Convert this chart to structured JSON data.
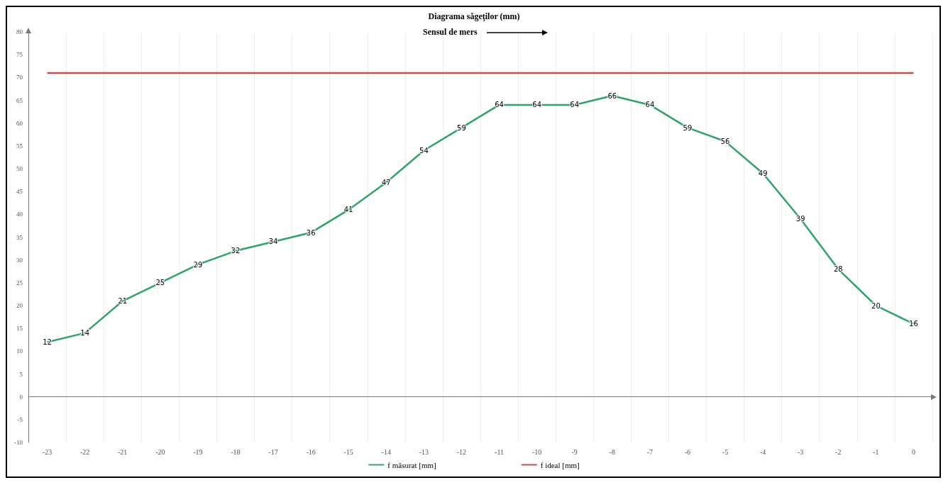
{
  "chart_data": {
    "type": "line",
    "title": "Diagrama săgeţilor (mm)",
    "annotations": [
      "Sensul de mers"
    ],
    "categories": [
      "-23",
      "-22",
      "-21",
      "-20",
      "-19",
      "-18",
      "-17",
      "-16",
      "-15",
      "-14",
      "-13",
      "-12",
      "-11",
      "-10",
      "-9",
      "-8",
      "-7",
      "-6",
      "-5",
      "-4",
      "-3",
      "-2",
      "-1",
      "0"
    ],
    "series": [
      {
        "name": "f măsurat [mm]",
        "color": "#2ea36a",
        "values": [
          12,
          14,
          21,
          25,
          29,
          32,
          34,
          36,
          41,
          47,
          54,
          59,
          64,
          64,
          64,
          66,
          64,
          59,
          56,
          49,
          39,
          28,
          20,
          16
        ],
        "value_labels": [
          "12",
          "14",
          "21",
          "25",
          "29",
          "32",
          "34",
          "36",
          "41",
          "47",
          "54",
          "59",
          "64",
          "64",
          "64",
          "66",
          "64",
          "59",
          "56",
          "49",
          "39",
          "28",
          "20",
          "16"
        ]
      },
      {
        "name": "f ideal [mm]",
        "color": "#c0504d",
        "values": [
          71,
          71,
          71,
          71,
          71,
          71,
          71,
          71,
          71,
          71,
          71,
          71,
          71,
          71,
          71,
          71,
          71,
          71,
          71,
          71,
          71,
          71,
          71,
          71
        ]
      }
    ],
    "ylim": [
      -10,
      80
    ],
    "yticks": [
      -10,
      -5,
      0,
      5,
      10,
      15,
      20,
      25,
      30,
      35,
      40,
      45,
      50,
      55,
      60,
      65,
      70,
      75,
      80
    ],
    "grid": "x",
    "legend": "bottom",
    "marker": "none",
    "line_style": "solid"
  }
}
